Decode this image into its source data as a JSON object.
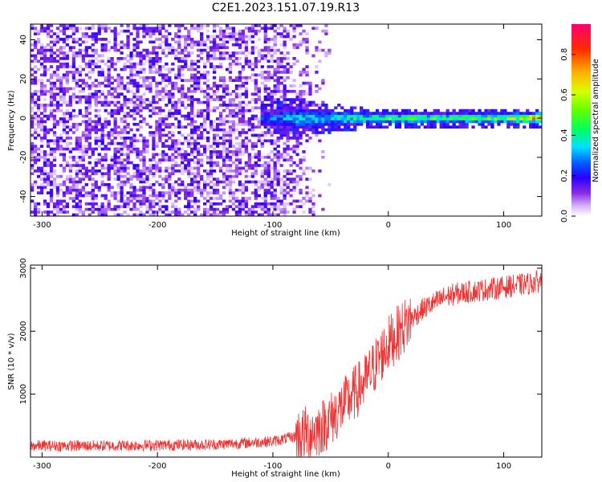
{
  "title": "C2E1.2023.151.07.19.R13",
  "chart_data": [
    {
      "type": "heatmap",
      "title": "",
      "xlabel": "Height of straight line (km)",
      "ylabel": "Frequency (Hz)",
      "xlim": [
        -310,
        133
      ],
      "ylim": [
        -50,
        48
      ],
      "xticks": [
        -300,
        -200,
        -100,
        0,
        100
      ],
      "yticks": [
        -40,
        -20,
        0,
        20,
        40
      ],
      "colorbar": {
        "label": "Normalized spectral amplitude",
        "range": [
          0.0,
          0.95
        ],
        "ticks": [
          0.0,
          0.2,
          0.4,
          0.6,
          0.8
        ]
      },
      "signal_band": {
        "description_points": [
          {
            "x": -110,
            "half_width": 4,
            "amplitude": 0.25
          },
          {
            "x": -80,
            "half_width": 6,
            "amplitude": 0.35
          },
          {
            "x": -50,
            "half_width": 4,
            "amplitude": 0.4
          },
          {
            "x": -20,
            "half_width": 3,
            "amplitude": 0.45
          },
          {
            "x": 0,
            "half_width": 2.5,
            "amplitude": 0.5
          },
          {
            "x": 50,
            "half_width": 2.5,
            "amplitude": 0.5
          },
          {
            "x": 100,
            "half_width": 2.5,
            "amplitude": 0.55
          },
          {
            "x": 130,
            "half_width": 2.5,
            "amplitude": 0.75
          }
        ]
      },
      "noise_region_x": [
        -310,
        -50
      ]
    },
    {
      "type": "line",
      "title": "",
      "xlabel": "Height of straight line (km)",
      "ylabel": "SNR (10 * v/v)",
      "xlim": [
        -310,
        133
      ],
      "ylim": [
        0,
        3050
      ],
      "xticks": [
        -300,
        -200,
        -100,
        0,
        100
      ],
      "yticks": [
        1000,
        2000,
        3000
      ],
      "color": "#ee3333",
      "x": [
        -310,
        -250,
        -200,
        -150,
        -100,
        -75,
        -60,
        -50,
        -40,
        -30,
        -20,
        -15,
        -10,
        -5,
        0,
        10,
        20,
        30,
        40,
        50,
        60,
        80,
        100,
        120,
        133
      ],
      "y": [
        180,
        180,
        190,
        200,
        250,
        350,
        450,
        600,
        800,
        1000,
        1200,
        1350,
        1500,
        1650,
        1800,
        2000,
        2200,
        2350,
        2450,
        2550,
        2600,
        2650,
        2700,
        2750,
        2800
      ]
    }
  ]
}
